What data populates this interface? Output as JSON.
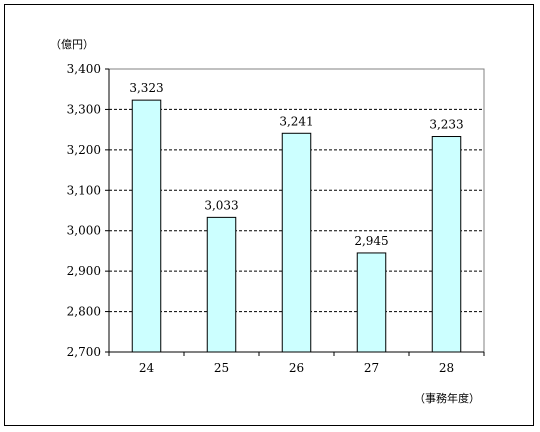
{
  "chart_data": {
    "type": "bar",
    "title": "",
    "xlabel": "（事務年度）",
    "ylabel": "（億円）",
    "categories": [
      "24",
      "25",
      "26",
      "27",
      "28"
    ],
    "values": [
      3323,
      3033,
      3241,
      2945,
      3233
    ],
    "value_labels": [
      "3,323",
      "3,033",
      "3,241",
      "2,945",
      "3,233"
    ],
    "ylim": [
      2700,
      3400
    ],
    "yticks": [
      2700,
      2800,
      2900,
      3000,
      3100,
      3200,
      3300,
      3400
    ],
    "ytick_labels": [
      "2,700",
      "2,800",
      "2,900",
      "3,000",
      "3,100",
      "3,200",
      "3,300",
      "3,400"
    ],
    "grid": true,
    "legend": "none",
    "colors": {
      "bar_fill": "#ccffff",
      "bar_stroke": "#000000",
      "grid": "#000000"
    }
  }
}
